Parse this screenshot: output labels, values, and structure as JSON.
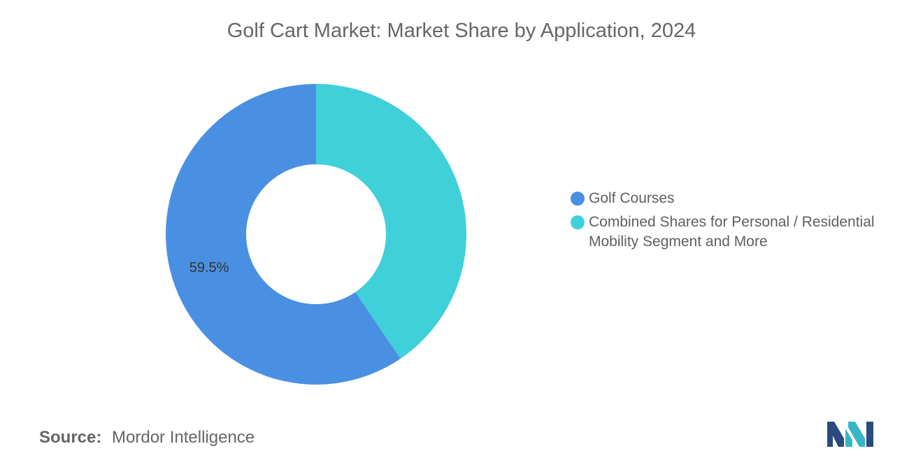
{
  "chart_data": {
    "type": "pie",
    "variant": "donut",
    "title": "Golf Cart Market: Market Share by Application, 2024",
    "slices": [
      {
        "name": "Golf Courses",
        "value": 59.5,
        "label": "59.5%",
        "color": "#4a90e2"
      },
      {
        "name": "Combined Shares for Personal / Residential Mobility Segment and More",
        "value": 40.5,
        "label": "",
        "color": "#40d0d9"
      }
    ],
    "legend_position": "right"
  },
  "legend": {
    "items": [
      {
        "label": "Golf Courses",
        "color": "#4a90e2"
      },
      {
        "label": "Combined Shares for Personal / Residential Mobility Segment and More",
        "color": "#40d0d9"
      }
    ]
  },
  "footer": {
    "source_key": "Source:",
    "source_value": "Mordor Intelligence",
    "logo_icon": "mordor-intelligence-logo-icon"
  }
}
